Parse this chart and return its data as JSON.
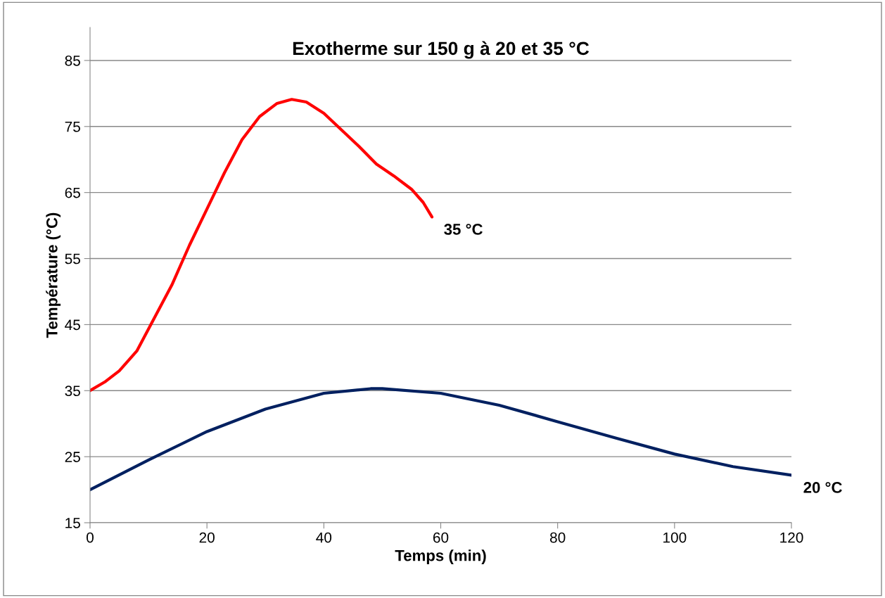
{
  "chart_data": {
    "type": "line",
    "title": "Exotherme sur 150 g à 20 et 35 °C",
    "xlabel": "Temps (min)",
    "ylabel": "Température (°C)",
    "xlim": [
      0,
      120
    ],
    "xticks": [
      0,
      20,
      40,
      60,
      80,
      100,
      120
    ],
    "ylim": [
      15,
      90
    ],
    "yticks": [
      15,
      25,
      35,
      45,
      55,
      65,
      75,
      85
    ],
    "grid": "y",
    "legend": false,
    "marker": "none",
    "line_style": "solid",
    "series": [
      {
        "name": "35 °C",
        "color": "#ff0000",
        "x": [
          0,
          2.5,
          5,
          8,
          11,
          14,
          17,
          20,
          23,
          26,
          29,
          32,
          34.5,
          37,
          40,
          43,
          46,
          49,
          52,
          55,
          57,
          58.5
        ],
        "values": [
          35,
          36.3,
          38,
          41,
          46,
          51,
          57,
          62.5,
          68,
          73,
          76.5,
          78.5,
          79.1,
          78.7,
          77,
          74.5,
          72,
          69.3,
          67.5,
          65.5,
          63.5,
          61.3
        ]
      },
      {
        "name": "20 °C",
        "color": "#002060",
        "x": [
          0,
          10,
          20,
          30,
          40,
          48,
          50,
          60,
          70,
          80,
          90,
          100,
          110,
          120
        ],
        "values": [
          20,
          24.5,
          28.8,
          32.2,
          34.6,
          35.3,
          35.3,
          34.6,
          32.8,
          30.3,
          27.8,
          25.4,
          23.5,
          22.2
        ]
      }
    ]
  }
}
